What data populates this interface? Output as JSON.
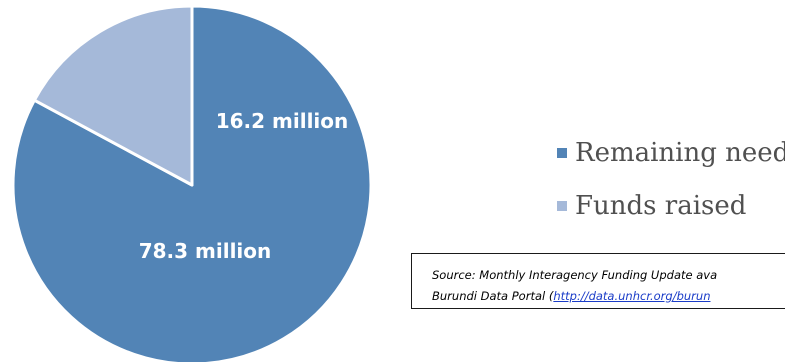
{
  "chart_data": {
    "type": "pie",
    "title": "",
    "slices": [
      {
        "name": "Remaining needs",
        "value": 78.3,
        "label": "78.3 million",
        "color": "#5284b6"
      },
      {
        "name": "Funds raised",
        "value": 16.2,
        "label": "16.2 million",
        "color": "#a5b9d9"
      }
    ],
    "start_angle_deg": 0,
    "direction": "clockwise",
    "legend": {
      "position": "right"
    }
  },
  "legend": {
    "items": [
      {
        "label": "Remaining needs",
        "color": "#5284b6"
      },
      {
        "label": "Funds raised",
        "color": "#a5b9d9"
      }
    ]
  },
  "source": {
    "line1": "Source: Monthly Interagency Funding Update ava",
    "line2_prefix": "Burundi Data Portal (",
    "line2_link": "http://data.unhcr.org/burun"
  }
}
